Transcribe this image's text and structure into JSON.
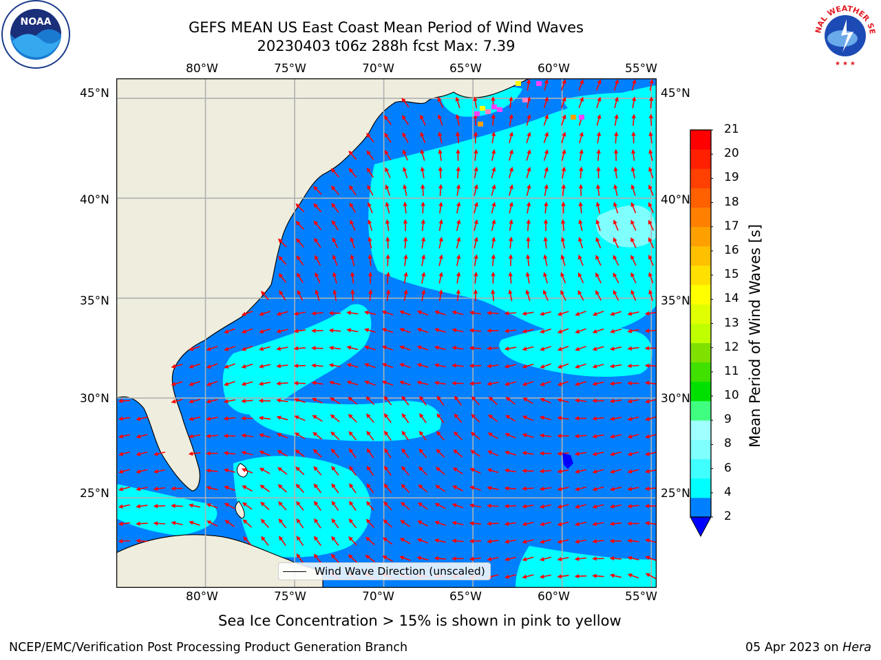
{
  "title": {
    "line1": "GEFS MEAN US East Coast Mean Period of Wind Waves",
    "line2": "20230403 t06z 288h fcst   Max: 7.39"
  },
  "map": {
    "lon_labels": [
      "80°W",
      "75°W",
      "70°W",
      "65°W",
      "60°W",
      "55°W"
    ],
    "lat_labels": [
      "45°N",
      "40°N",
      "35°N",
      "30°N",
      "25°N"
    ],
    "lon_range": [
      -85,
      -54.7
    ],
    "lat_range": [
      20.5,
      46
    ],
    "legend_label": "Wind Wave Direction (unscaled)",
    "arrow_color": "#ff0000",
    "land_color": "#eeedde",
    "grid_color": "#b0b0b0"
  },
  "colorbar": {
    "title": "Mean Period of Wind Waves [s]",
    "ticks": [
      "21",
      "20",
      "19",
      "18",
      "17",
      "16",
      "15",
      "14",
      "13",
      "12",
      "11",
      "10",
      "9",
      "8",
      "6",
      "4",
      "2"
    ],
    "colors_bottom_to_top": [
      "#0080ff",
      "#00ffff",
      "#40ffff",
      "#80ffff",
      "#a0ffff",
      "#40ff80",
      "#00e000",
      "#40e000",
      "#80e000",
      "#c0ff00",
      "#e0ff00",
      "#ffff00",
      "#ffe000",
      "#ffc000",
      "#ffa000",
      "#ff8000",
      "#ff6000",
      "#ff4000",
      "#ff2000",
      "#ff0000"
    ],
    "extend_color": "#0000ff"
  },
  "caption": "Sea Ice Concentration > 15% is shown in pink to yellow",
  "footer": {
    "left": "NCEP/EMC/Verification Post Processing Product Generation Branch",
    "right_date": "05 Apr 2023 on",
    "right_host": "Hera"
  },
  "logos": {
    "noaa": "NOAA",
    "nws": "NATIONAL WEATHER SERVICE"
  }
}
